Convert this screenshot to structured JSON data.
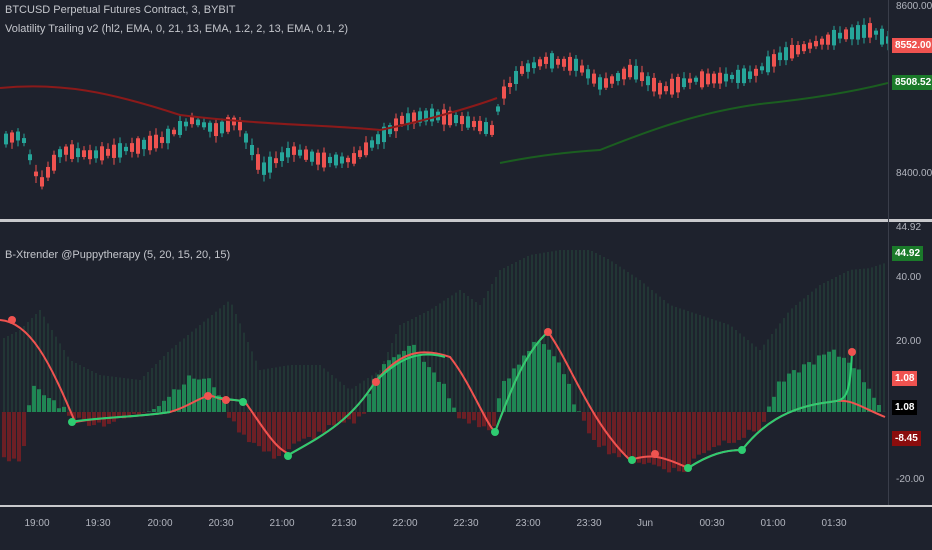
{
  "top_pane": {
    "legend_line1": "BTCUSD Perpetual Futures Contract, 3, BYBIT",
    "legend_line2": "Volatility Trailing v2 (hl2, EMA, 0, 21, 13, EMA, 1.2, 2, 13, EMA, 0.1, 2)",
    "axis_ticks": [
      "8600.00",
      "8400.00"
    ],
    "price_tag": "8552.00",
    "trail_tag": "8508.52"
  },
  "bottom_pane": {
    "legend": "B-Xtrender @Puppytherapy (5, 20, 15, 20, 15)",
    "axis_ticks": [
      "40.00",
      "20.00",
      "-20.00"
    ],
    "tag_top_plain": "44.92",
    "tag_top_green": "44.92",
    "tag_red": "1.08",
    "tag_black": "1.08",
    "tag_darkred": "-8.45"
  },
  "x_axis": {
    "labels": [
      "19:00",
      "19:30",
      "20:00",
      "20:30",
      "21:00",
      "21:30",
      "22:00",
      "22:30",
      "23:00",
      "23:30",
      "Jun",
      "00:30",
      "01:00",
      "01:30"
    ]
  },
  "colors": {
    "background": "#1e222d",
    "up": "#26a69a",
    "down": "#ef5350",
    "green_hist": "#1f9a5c",
    "red_hist": "#7a1f24",
    "trail_red": "#8b1a1a",
    "trail_green": "#1b5e20"
  }
}
